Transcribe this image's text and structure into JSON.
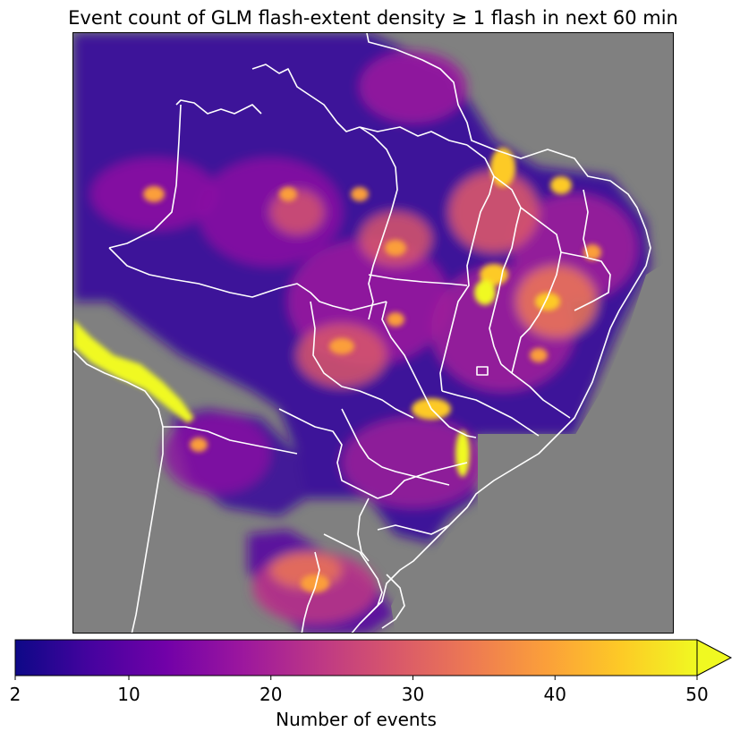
{
  "title": "Event count of GLM flash-extent density ≥ 1 flash in next 60 min",
  "colorbar": {
    "label": "Number of events",
    "min": 2,
    "max": 50,
    "extend": "max",
    "colormap": "plasma",
    "colors": [
      "#0d0887",
      "#46039f",
      "#7201a8",
      "#9c179e",
      "#bd3786",
      "#d8576b",
      "#ed7953",
      "#fb9f3a",
      "#fdca26",
      "#f0f921"
    ],
    "ticks": [
      {
        "value": 2,
        "label": "2"
      },
      {
        "value": 10,
        "label": "10"
      },
      {
        "value": 20,
        "label": "20"
      },
      {
        "value": 30,
        "label": "30"
      },
      {
        "value": 40,
        "label": "40"
      },
      {
        "value": 50,
        "label": "50"
      }
    ]
  },
  "map": {
    "background_color": "#808080",
    "boundary_color": "#ffffff"
  }
}
